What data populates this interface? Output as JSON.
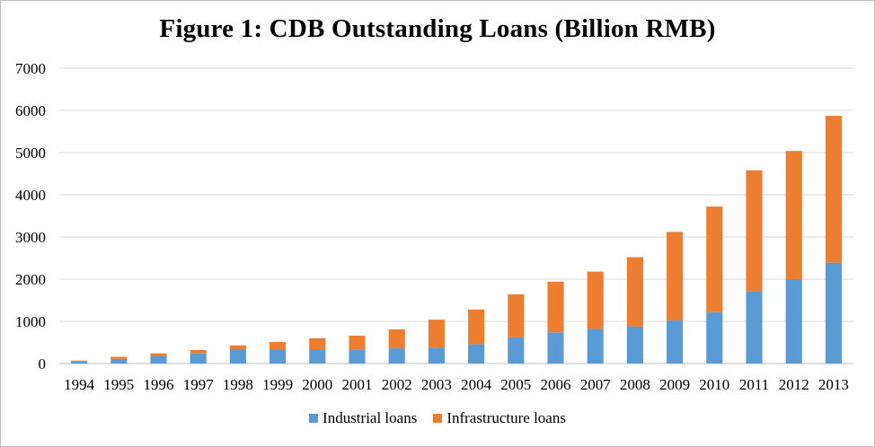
{
  "chart_data": {
    "type": "bar",
    "stacked": true,
    "title": "Figure 1: CDB Outstanding Loans (Billion RMB)",
    "xlabel": "",
    "ylabel": "",
    "ylim": [
      0,
      7000
    ],
    "yticks": [
      "0",
      "1000",
      "2000",
      "3000",
      "4000",
      "5000",
      "6000",
      "7000"
    ],
    "grid": true,
    "legend_position": "bottom",
    "categories": [
      "1994",
      "1995",
      "1996",
      "1997",
      "1998",
      "1999",
      "2000",
      "2001",
      "2002",
      "2003",
      "2004",
      "2005",
      "2006",
      "2007",
      "2008",
      "2009",
      "2010",
      "2011",
      "2012",
      "2013"
    ],
    "series": [
      {
        "name": "Industrial loans",
        "color": "#5b9bd5",
        "values": [
          50,
          110,
          180,
          240,
          330,
          330,
          340,
          320,
          360,
          380,
          460,
          620,
          740,
          820,
          880,
          1020,
          1220,
          1720,
          2000,
          2390
        ]
      },
      {
        "name": "Infrastructure loans",
        "color": "#ed7d31",
        "values": [
          20,
          50,
          60,
          80,
          100,
          180,
          260,
          340,
          450,
          660,
          820,
          1020,
          1200,
          1360,
          1640,
          2100,
          2500,
          2860,
          3040,
          3480
        ]
      }
    ]
  }
}
